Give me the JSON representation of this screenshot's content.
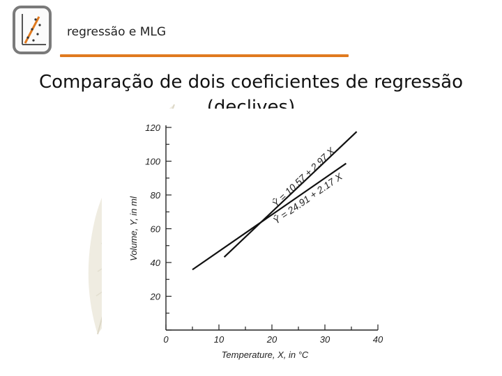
{
  "header": {
    "title": "regressão e MLG"
  },
  "main": {
    "title_line1": "Comparação de dois coeficientes de regressão",
    "title_line2": "(declives)"
  },
  "logo": {
    "icon": "scatter-plot-icon"
  },
  "colors": {
    "accent": "#e07a1f",
    "text": "#111111",
    "logo_border": "#7a7a7a",
    "feather": "#ece9dc"
  },
  "chart_data": {
    "type": "line",
    "xlabel": "Temperature, X, in °C",
    "ylabel": "Volume, Y, in ml",
    "xlim": [
      0,
      40
    ],
    "ylim": [
      0,
      120
    ],
    "x_ticks": [
      "0",
      "10",
      "20",
      "30",
      "40"
    ],
    "y_ticks": [
      "20",
      "40",
      "60",
      "80",
      "100",
      "120"
    ],
    "grid": false,
    "series": [
      {
        "name": "Ŷ = 10.57 + 2.97 X",
        "intercept": 10.57,
        "slope": 2.97,
        "x": [
          11,
          36
        ]
      },
      {
        "name": "Ŷ = 24.91 + 2.17 X",
        "intercept": 24.91,
        "slope": 2.17,
        "x": [
          5,
          34
        ]
      }
    ]
  }
}
